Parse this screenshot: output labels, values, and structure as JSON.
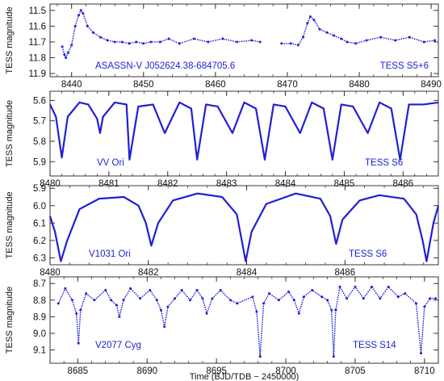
{
  "colors": {
    "data": "#1f1fd6",
    "axes": "#222222",
    "text": "#111111"
  },
  "chart_data": [
    {
      "type": "scatter",
      "ylabel": "TESS magnitude",
      "xlim": [
        8437,
        8491
      ],
      "ylim": [
        11.92,
        11.46
      ],
      "grid": false,
      "x_ticks": [
        8440,
        8450,
        8460,
        8470,
        8480,
        8490
      ],
      "x_tick_labels": [
        "8440",
        "8450",
        "8460",
        "8470",
        "8480",
        "8490"
      ],
      "y_ticks": [
        11.5,
        11.6,
        11.7,
        11.8,
        11.9
      ],
      "y_tick_labels": [
        "11.5",
        "11.6",
        "11.7",
        "11.8",
        "11.9"
      ],
      "annotations": [
        "ASASSN-V J052624.38-684705.6",
        "TESS S5+6"
      ],
      "series": [
        {
          "values": [
            [
              8438.7,
              11.73
            ],
            [
              8439.0,
              11.78
            ],
            [
              8439.2,
              11.8
            ],
            [
              8439.5,
              11.77
            ],
            [
              8440.0,
              11.72
            ],
            [
              8440.5,
              11.6
            ],
            [
              8441.0,
              11.53
            ],
            [
              8441.3,
              11.5
            ],
            [
              8441.6,
              11.52
            ],
            [
              8442.2,
              11.6
            ],
            [
              8443.0,
              11.64
            ],
            [
              8444.0,
              11.67
            ],
            [
              8445.0,
              11.69
            ],
            [
              8446.0,
              11.7
            ],
            [
              8447.0,
              11.7
            ],
            [
              8448.0,
              11.71
            ],
            [
              8449.0,
              11.7
            ],
            [
              8450.0,
              11.71
            ],
            [
              8451.0,
              11.7
            ],
            [
              8452.3,
              11.7
            ],
            [
              8453.5,
              11.68
            ],
            [
              8455.0,
              11.71
            ],
            [
              8457.0,
              11.68
            ],
            [
              8459.0,
              11.7
            ],
            [
              8461.0,
              11.68
            ],
            [
              8463.0,
              11.7
            ],
            [
              8465.0,
              11.69
            ],
            [
              8466.2,
              11.7
            ],
            [
              8469.2,
              11.71
            ],
            [
              8470.5,
              11.71
            ],
            [
              8471.5,
              11.72
            ],
            [
              8472.2,
              11.67
            ],
            [
              8472.8,
              11.58
            ],
            [
              8473.2,
              11.54
            ],
            [
              8473.7,
              11.56
            ],
            [
              8474.5,
              11.62
            ],
            [
              8475.5,
              11.64
            ],
            [
              8476.5,
              11.66
            ],
            [
              8477.5,
              11.68
            ],
            [
              8478.3,
              11.7
            ],
            [
              8479.5,
              11.71
            ],
            [
              8481.0,
              11.69
            ],
            [
              8483.0,
              11.67
            ],
            [
              8485.0,
              11.69
            ],
            [
              8487.0,
              11.67
            ],
            [
              8489.0,
              11.7
            ],
            [
              8490.5,
              11.69
            ]
          ]
        }
      ]
    },
    {
      "type": "line",
      "ylabel": "TESS magnitude",
      "xlim": [
        8480,
        8486.6
      ],
      "ylim": [
        5.97,
        5.555
      ],
      "grid": false,
      "x_ticks": [
        8480,
        8481,
        8482,
        8483,
        8484,
        8485,
        8486
      ],
      "x_tick_labels": [
        "8480",
        "8481",
        "8482",
        "8483",
        "8484",
        "8485",
        "8486"
      ],
      "y_ticks": [
        5.6,
        5.7,
        5.8,
        5.9
      ],
      "y_tick_labels": [
        "5.6",
        "5.7",
        "5.8",
        "5.9"
      ],
      "annotations": [
        "VV Ori",
        "TESS S6"
      ],
      "series": [
        {
          "values": [
            [
              8480.0,
              5.62
            ],
            [
              8480.1,
              5.68
            ],
            [
              8480.2,
              5.88
            ],
            [
              8480.3,
              5.68
            ],
            [
              8480.5,
              5.61
            ],
            [
              8480.65,
              5.62
            ],
            [
              8480.8,
              5.69
            ],
            [
              8480.85,
              5.76
            ],
            [
              8480.9,
              5.68
            ],
            [
              8481.1,
              5.61
            ],
            [
              8481.3,
              5.62
            ],
            [
              8481.35,
              5.89
            ],
            [
              8481.5,
              5.63
            ],
            [
              8481.75,
              5.62
            ],
            [
              8481.95,
              5.76
            ],
            [
              8482.2,
              5.61
            ],
            [
              8482.4,
              5.64
            ],
            [
              8482.5,
              5.89
            ],
            [
              8482.65,
              5.62
            ],
            [
              8482.85,
              5.63
            ],
            [
              8483.1,
              5.76
            ],
            [
              8483.3,
              5.61
            ],
            [
              8483.5,
              5.64
            ],
            [
              8483.65,
              5.89
            ],
            [
              8483.8,
              5.62
            ],
            [
              8484.0,
              5.63
            ],
            [
              8484.25,
              5.76
            ],
            [
              8484.45,
              5.61
            ],
            [
              8484.65,
              5.64
            ],
            [
              8484.8,
              5.89
            ],
            [
              8484.95,
              5.62
            ],
            [
              8485.15,
              5.63
            ],
            [
              8485.4,
              5.76
            ],
            [
              8485.6,
              5.61
            ],
            [
              8485.8,
              5.64
            ],
            [
              8485.95,
              5.89
            ],
            [
              8486.1,
              5.62
            ],
            [
              8486.35,
              5.62
            ],
            [
              8486.6,
              5.61
            ]
          ]
        }
      ]
    },
    {
      "type": "line",
      "ylabel": "TESS magnitude",
      "xlim": [
        8480,
        8487.9
      ],
      "ylim": [
        6.34,
        5.885
      ],
      "grid": false,
      "x_ticks": [
        8480,
        8482,
        8484,
        8486
      ],
      "x_tick_labels": [
        "8480",
        "8482",
        "8484",
        "8486"
      ],
      "y_ticks": [
        5.9,
        6.0,
        6.1,
        6.2,
        6.3
      ],
      "y_tick_labels": [
        "5.9",
        "6.0",
        "6.1",
        "6.2",
        "6.3"
      ],
      "annotations": [
        "V1031 Ori",
        "TESS S6"
      ],
      "series": [
        {
          "values": [
            [
              8480.0,
              6.06
            ],
            [
              8480.1,
              6.15
            ],
            [
              8480.22,
              6.32
            ],
            [
              8480.35,
              6.2
            ],
            [
              8480.6,
              6.02
            ],
            [
              8481.0,
              5.96
            ],
            [
              8481.5,
              5.95
            ],
            [
              8481.8,
              6.0
            ],
            [
              8481.95,
              6.1
            ],
            [
              8482.06,
              6.23
            ],
            [
              8482.2,
              6.1
            ],
            [
              8482.5,
              5.97
            ],
            [
              8483.0,
              5.93
            ],
            [
              8483.5,
              5.95
            ],
            [
              8483.8,
              6.05
            ],
            [
              8483.9,
              6.2
            ],
            [
              8483.98,
              6.32
            ],
            [
              8484.1,
              6.15
            ],
            [
              8484.4,
              5.99
            ],
            [
              8485.0,
              5.93
            ],
            [
              8485.5,
              5.96
            ],
            [
              8485.7,
              6.06
            ],
            [
              8485.82,
              6.22
            ],
            [
              8485.95,
              6.08
            ],
            [
              8486.3,
              5.97
            ],
            [
              8486.7,
              5.94
            ],
            [
              8487.2,
              5.96
            ],
            [
              8487.45,
              6.05
            ],
            [
              8487.58,
              6.2
            ],
            [
              8487.66,
              6.32
            ],
            [
              8487.8,
              6.1
            ],
            [
              8487.9,
              6.0
            ]
          ]
        }
      ]
    },
    {
      "type": "scatter",
      "xlabel": "Time   (BJD/TDB − 2450000)",
      "ylabel": "TESS magnitude",
      "xlim": [
        8683,
        8711
      ],
      "ylim": [
        9.18,
        8.66
      ],
      "grid": false,
      "x_ticks": [
        8685,
        8690,
        8695,
        8700,
        8705,
        8710
      ],
      "x_tick_labels": [
        "8685",
        "8690",
        "8695",
        "8700",
        "8705",
        "8710"
      ],
      "y_ticks": [
        8.7,
        8.8,
        8.9,
        9.0,
        9.1
      ],
      "y_tick_labels": [
        "8.7",
        "8.8",
        "8.9",
        "9.0",
        "9.1"
      ],
      "annotations": [
        "V2077 Cyg",
        "TESS S14"
      ],
      "series": [
        {
          "values": [
            [
              8683.6,
              8.82
            ],
            [
              8684.1,
              8.73
            ],
            [
              8684.6,
              8.8
            ],
            [
              8684.9,
              8.88
            ],
            [
              8685.05,
              9.06
            ],
            [
              8685.2,
              8.86
            ],
            [
              8685.6,
              8.76
            ],
            [
              8686.2,
              8.8
            ],
            [
              8687.0,
              8.74
            ],
            [
              8687.4,
              8.8
            ],
            [
              8687.8,
              8.83
            ],
            [
              8688.0,
              8.9
            ],
            [
              8688.3,
              8.8
            ],
            [
              8688.8,
              8.73
            ],
            [
              8689.5,
              8.79
            ],
            [
              8690.2,
              8.74
            ],
            [
              8690.7,
              8.8
            ],
            [
              8691.0,
              8.86
            ],
            [
              8691.25,
              8.96
            ],
            [
              8691.5,
              8.84
            ],
            [
              8692.0,
              8.79
            ],
            [
              8692.5,
              8.74
            ],
            [
              8693.1,
              8.8
            ],
            [
              8693.6,
              8.74
            ],
            [
              8694.0,
              8.79
            ],
            [
              8694.3,
              8.88
            ],
            [
              8694.7,
              8.79
            ],
            [
              8695.3,
              8.74
            ],
            [
              8696.0,
              8.8
            ],
            [
              8696.5,
              8.82
            ],
            [
              8697.6,
              8.78
            ],
            [
              8697.9,
              8.87
            ],
            [
              8698.15,
              9.14
            ],
            [
              8698.4,
              8.82
            ],
            [
              8698.8,
              8.76
            ],
            [
              8699.5,
              8.8
            ],
            [
              8700.2,
              8.75
            ],
            [
              8700.6,
              8.8
            ],
            [
              8700.95,
              8.88
            ],
            [
              8701.3,
              8.78
            ],
            [
              8701.9,
              8.74
            ],
            [
              8702.6,
              8.78
            ],
            [
              8703.0,
              8.8
            ],
            [
              8703.3,
              8.86
            ],
            [
              8703.45,
              9.14
            ],
            [
              8703.6,
              8.86
            ],
            [
              8703.9,
              8.72
            ],
            [
              8704.4,
              8.79
            ],
            [
              8705.0,
              8.72
            ],
            [
              8705.6,
              8.79
            ],
            [
              8706.2,
              8.72
            ],
            [
              8706.8,
              8.79
            ],
            [
              8707.4,
              8.72
            ],
            [
              8708.1,
              8.78
            ],
            [
              8708.6,
              8.76
            ],
            [
              8709.4,
              8.82
            ],
            [
              8709.75,
              9.12
            ],
            [
              8710.0,
              8.84
            ],
            [
              8710.4,
              8.79
            ],
            [
              8710.8,
              8.79
            ]
          ]
        }
      ]
    }
  ]
}
